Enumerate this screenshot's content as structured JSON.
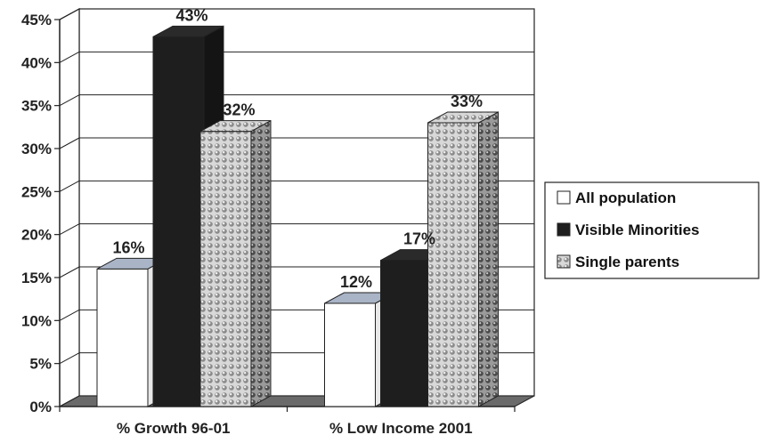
{
  "chart_data": {
    "type": "bar",
    "categories": [
      "% Growth 96-01",
      "% Low Income 2001"
    ],
    "series": [
      {
        "name": "All population",
        "values": [
          16,
          12
        ],
        "labels": [
          "16%",
          "12%"
        ]
      },
      {
        "name": "Visible Minorities",
        "values": [
          43,
          17
        ],
        "labels": [
          "43%",
          "17%"
        ]
      },
      {
        "name": "Single parents",
        "values": [
          32,
          33
        ],
        "labels": [
          "32%",
          "33%"
        ]
      }
    ],
    "ylim": [
      0,
      45
    ],
    "yticks": [
      "0%",
      "5%",
      "10%",
      "15%",
      "20%",
      "25%",
      "30%",
      "35%",
      "40%",
      "45%"
    ],
    "grid": true,
    "legend_position": "right",
    "colors": {
      "All population": "#ffffff",
      "Visible Minorities": "#1e1e1e",
      "Single parents": "#cfcfcf",
      "floor": "#6a6a6a"
    }
  }
}
